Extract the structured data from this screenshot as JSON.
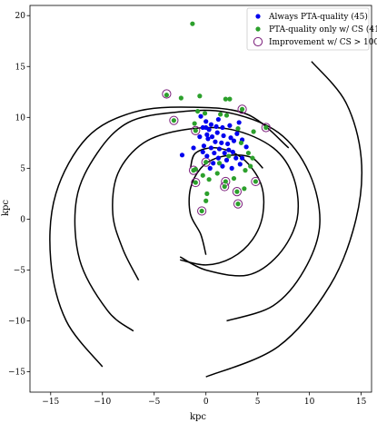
{
  "chart_data": {
    "type": "scatter",
    "title": "",
    "xlabel": "kpc",
    "ylabel": "kpc",
    "xlim": [
      -17,
      16
    ],
    "ylim": [
      -17,
      21
    ],
    "xticks": [
      -15,
      -10,
      -5,
      0,
      5,
      10,
      15
    ],
    "yticks": [
      -15,
      -10,
      -5,
      0,
      5,
      10,
      15,
      20
    ],
    "grid": false,
    "legend_position": "top-right",
    "colors": {
      "always": "#0000ee",
      "cs_only": "#2ca02c",
      "improvement_ring": "#7b1f7b",
      "arms": "#000000"
    },
    "legend": [
      {
        "key": "always",
        "label": "Always PTA-quality (45)"
      },
      {
        "key": "cs_only",
        "label": "PTA-quality only w/ CS (41)"
      },
      {
        "key": "improvement",
        "label": "Improvement w/ CS > 100x"
      }
    ],
    "spiral_arms": [
      {
        "description": "spiral arm",
        "points": [
          [
            10.2,
            15.5
          ],
          [
            13.5,
            11.5
          ],
          [
            15.0,
            6.0
          ],
          [
            14.5,
            0.0
          ],
          [
            12.0,
            -6.5
          ],
          [
            7.0,
            -12.5
          ],
          [
            0.0,
            -15.5
          ]
        ]
      },
      {
        "description": "spiral arm",
        "points": [
          [
            -10.0,
            -14.5
          ],
          [
            -13.5,
            -10.0
          ],
          [
            -15.0,
            -4.0
          ],
          [
            -14.5,
            2.5
          ],
          [
            -11.5,
            8.0
          ],
          [
            -7.0,
            10.5
          ],
          [
            -1.5,
            11.0
          ],
          [
            4.0,
            10.3
          ],
          [
            8.0,
            7.0
          ]
        ]
      },
      {
        "description": "spiral arm",
        "points": [
          [
            2.0,
            -10.0
          ],
          [
            6.5,
            -8.5
          ],
          [
            9.5,
            -5.0
          ],
          [
            11.0,
            -0.5
          ],
          [
            10.0,
            4.5
          ],
          [
            7.0,
            8.5
          ],
          [
            2.0,
            10.5
          ],
          [
            -3.0,
            10.5
          ],
          [
            -7.5,
            9.5
          ],
          [
            -10.5,
            6.5
          ],
          [
            -12.5,
            2.0
          ],
          [
            -12.2,
            -4.0
          ],
          [
            -9.5,
            -9.0
          ],
          [
            -7.0,
            -11.0
          ]
        ]
      },
      {
        "description": "spiral arm",
        "points": [
          [
            -2.5,
            -3.7
          ],
          [
            0.0,
            -5.0
          ],
          [
            4.0,
            -5.5
          ],
          [
            7.0,
            -3.5
          ],
          [
            8.8,
            0.0
          ],
          [
            8.5,
            4.0
          ],
          [
            6.5,
            7.0
          ],
          [
            2.5,
            8.8
          ],
          [
            -2.0,
            8.8
          ],
          [
            -6.0,
            7.5
          ],
          [
            -8.5,
            4.5
          ],
          [
            -9.0,
            0.5
          ],
          [
            -8.0,
            -3.0
          ],
          [
            -6.5,
            -6.0
          ]
        ]
      },
      {
        "description": "spiral arm",
        "points": [
          [
            -1.5,
            5.0
          ],
          [
            -1.0,
            6.5
          ],
          [
            1.0,
            7.0
          ],
          [
            3.5,
            6.0
          ],
          [
            5.3,
            3.5
          ],
          [
            5.5,
            0.5
          ],
          [
            4.5,
            -2.0
          ],
          [
            2.5,
            -3.8
          ],
          [
            0.0,
            -4.5
          ],
          [
            -2.5,
            -4.0
          ]
        ]
      },
      {
        "description": "spiral arm",
        "points": [
          [
            5.5,
            5.0
          ],
          [
            4.5,
            6.0
          ],
          [
            3.0,
            6.3
          ],
          [
            1.0,
            6.0
          ],
          [
            -0.5,
            5.0
          ],
          [
            -1.5,
            3.0
          ],
          [
            -1.5,
            0.5
          ],
          [
            -0.5,
            -1.5
          ],
          [
            0.0,
            -3.5
          ]
        ]
      }
    ],
    "series": [
      {
        "name": "Always PTA-quality (45)",
        "key": "always",
        "points": [
          [
            -0.5,
            10.1
          ],
          [
            0.0,
            9.6
          ],
          [
            0.5,
            9.3
          ],
          [
            -0.3,
            9.0
          ],
          [
            0.3,
            8.8
          ],
          [
            1.0,
            9.1
          ],
          [
            1.6,
            9.0
          ],
          [
            2.3,
            9.2
          ],
          [
            0.1,
            8.3
          ],
          [
            0.6,
            8.1
          ],
          [
            1.1,
            8.5
          ],
          [
            1.7,
            8.2
          ],
          [
            2.4,
            8.0
          ],
          [
            3.0,
            8.4
          ],
          [
            -0.6,
            8.1
          ],
          [
            0.2,
            7.9
          ],
          [
            0.9,
            7.6
          ],
          [
            1.5,
            7.5
          ],
          [
            2.1,
            7.4
          ],
          [
            2.7,
            7.7
          ],
          [
            -0.2,
            7.2
          ],
          [
            0.5,
            7.0
          ],
          [
            1.3,
            6.9
          ],
          [
            2.2,
            6.8
          ],
          [
            -1.2,
            7.0
          ],
          [
            0.8,
            6.5
          ],
          [
            1.8,
            6.5
          ],
          [
            2.6,
            6.6
          ],
          [
            0.1,
            6.2
          ],
          [
            1.2,
            6.0
          ],
          [
            2.0,
            5.8
          ],
          [
            2.9,
            6.0
          ],
          [
            3.5,
            6.0
          ],
          [
            -2.3,
            6.3
          ],
          [
            0.7,
            5.5
          ],
          [
            1.6,
            5.2
          ],
          [
            2.5,
            5.0
          ],
          [
            3.3,
            5.4
          ],
          [
            3.9,
            7.1
          ],
          [
            3.5,
            7.8
          ],
          [
            1.2,
            9.8
          ],
          [
            -0.3,
            6.6
          ],
          [
            0.0,
            9.0
          ],
          [
            3.2,
            9.5
          ],
          [
            0.4,
            5.0
          ]
        ]
      },
      {
        "name": "PTA-quality only w/ CS (41)",
        "key": "cs_only",
        "points": [
          [
            -1.3,
            19.2
          ],
          [
            -3.8,
            12.2
          ],
          [
            -2.4,
            11.9
          ],
          [
            -0.6,
            12.1
          ],
          [
            1.9,
            11.8
          ],
          [
            2.3,
            11.8
          ],
          [
            3.5,
            10.8
          ],
          [
            -0.8,
            10.6
          ],
          [
            -3.1,
            9.7
          ],
          [
            -1.1,
            9.4
          ],
          [
            1.4,
            10.3
          ],
          [
            2.0,
            10.2
          ],
          [
            -0.1,
            10.4
          ],
          [
            -1.0,
            8.7
          ],
          [
            3.1,
            8.9
          ],
          [
            4.6,
            8.6
          ],
          [
            5.8,
            9.0
          ],
          [
            3.4,
            7.5
          ],
          [
            4.1,
            6.5
          ],
          [
            2.2,
            6.2
          ],
          [
            0.0,
            5.6
          ],
          [
            4.5,
            6.0
          ],
          [
            3.8,
            4.8
          ],
          [
            4.3,
            5.2
          ],
          [
            1.3,
            5.5
          ],
          [
            -1.0,
            4.9
          ],
          [
            -1.2,
            4.8
          ],
          [
            -0.3,
            4.3
          ],
          [
            1.1,
            4.5
          ],
          [
            2.7,
            4.0
          ],
          [
            1.9,
            3.7
          ],
          [
            4.8,
            3.7
          ],
          [
            -1.0,
            3.6
          ],
          [
            1.8,
            3.2
          ],
          [
            3.0,
            2.7
          ],
          [
            3.7,
            3.0
          ],
          [
            0.1,
            2.5
          ],
          [
            3.1,
            1.5
          ],
          [
            0.0,
            1.8
          ],
          [
            -0.4,
            0.8
          ],
          [
            0.3,
            3.9
          ]
        ]
      }
    ],
    "improvement_rings": [
      [
        -3.8,
        12.3
      ],
      [
        -3.1,
        9.7
      ],
      [
        3.5,
        10.8
      ],
      [
        5.8,
        9.0
      ],
      [
        -1.0,
        8.7
      ],
      [
        0.0,
        5.6
      ],
      [
        -1.2,
        4.8
      ],
      [
        -1.0,
        3.6
      ],
      [
        1.9,
        3.7
      ],
      [
        1.8,
        3.2
      ],
      [
        4.8,
        3.7
      ],
      [
        3.0,
        2.7
      ],
      [
        3.1,
        1.5
      ],
      [
        -0.4,
        0.8
      ]
    ]
  }
}
